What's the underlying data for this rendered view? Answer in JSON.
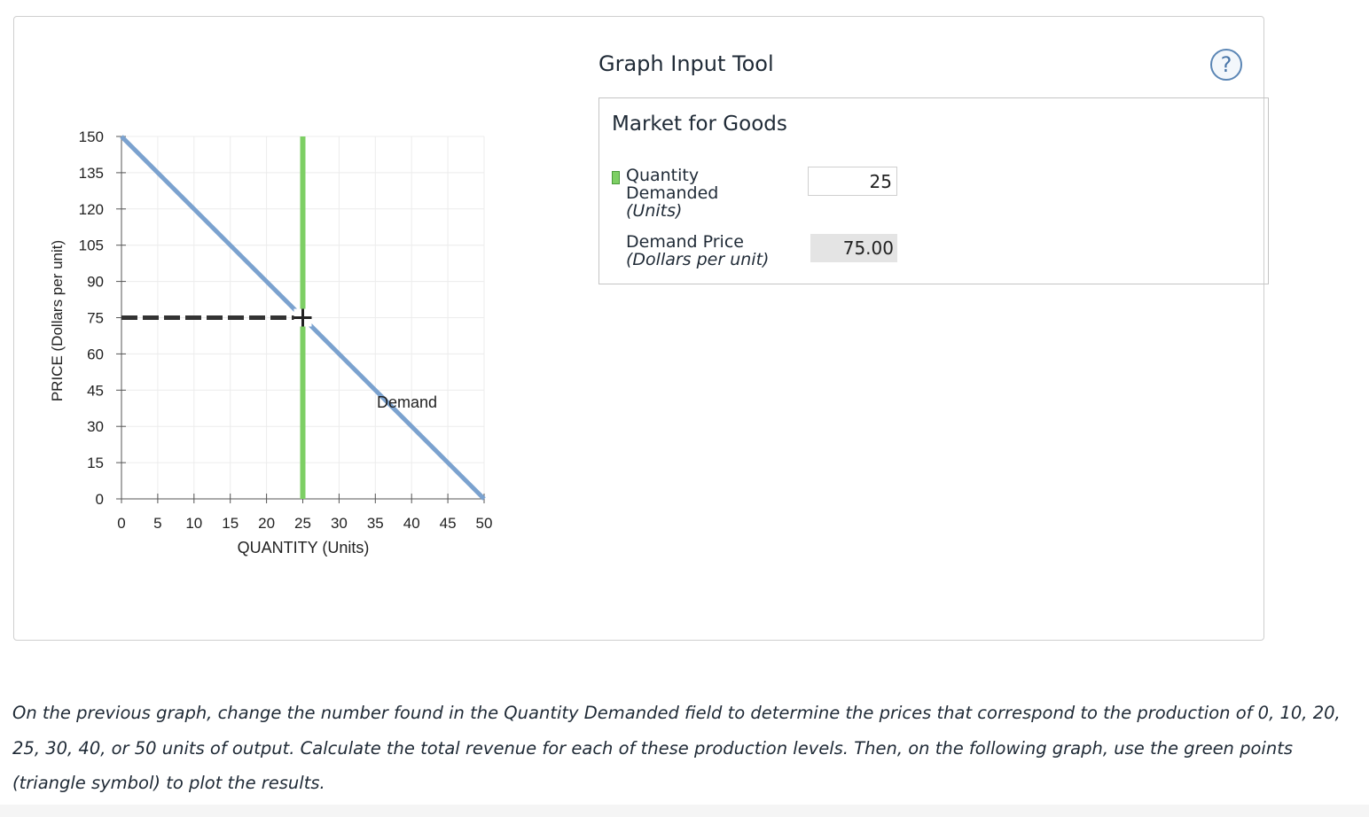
{
  "graph": {
    "xlabel": "QUANTITY (Units)",
    "ylabel": "PRICE (Dollars per unit)",
    "demand_label": "Demand"
  },
  "chart_data": {
    "type": "line",
    "xlim": [
      0,
      50
    ],
    "ylim": [
      0,
      150
    ],
    "x_ticks": [
      0,
      5,
      10,
      15,
      20,
      25,
      30,
      35,
      40,
      45,
      50
    ],
    "y_ticks": [
      0,
      15,
      30,
      45,
      60,
      75,
      90,
      105,
      120,
      135,
      150
    ],
    "grid": true,
    "series": [
      {
        "name": "Demand",
        "color": "#7ba2cf",
        "points": [
          [
            0,
            150
          ],
          [
            50,
            0
          ]
        ]
      }
    ],
    "quantity_marker": {
      "x": 25,
      "color": "#7dcf64"
    },
    "price_guide": {
      "y": 75,
      "from_x": 0,
      "to_x": 25,
      "style": "dashed",
      "color": "#333333"
    },
    "selected_point": {
      "x": 25,
      "y": 75
    }
  },
  "tool": {
    "title": "Graph Input Tool",
    "help_icon": "question-circle-icon",
    "help_symbol": "?",
    "box_title": "Market for Goods",
    "quantity_label_line1": "Quantity",
    "quantity_label_line2": "Demanded",
    "quantity_unit": "(Units)",
    "quantity_value": "25",
    "price_label": "Demand Price",
    "price_unit": "(Dollars per unit)",
    "price_value": "75.00"
  },
  "instructions": "On the previous graph, change the number found in the Quantity Demanded field to determine the prices that correspond to the production of 0, 10, 20, 25, 30, 40, or 50 units of output. Calculate the total revenue for each of these production levels. Then, on the following graph, use the green points (triangle symbol) to plot the results."
}
